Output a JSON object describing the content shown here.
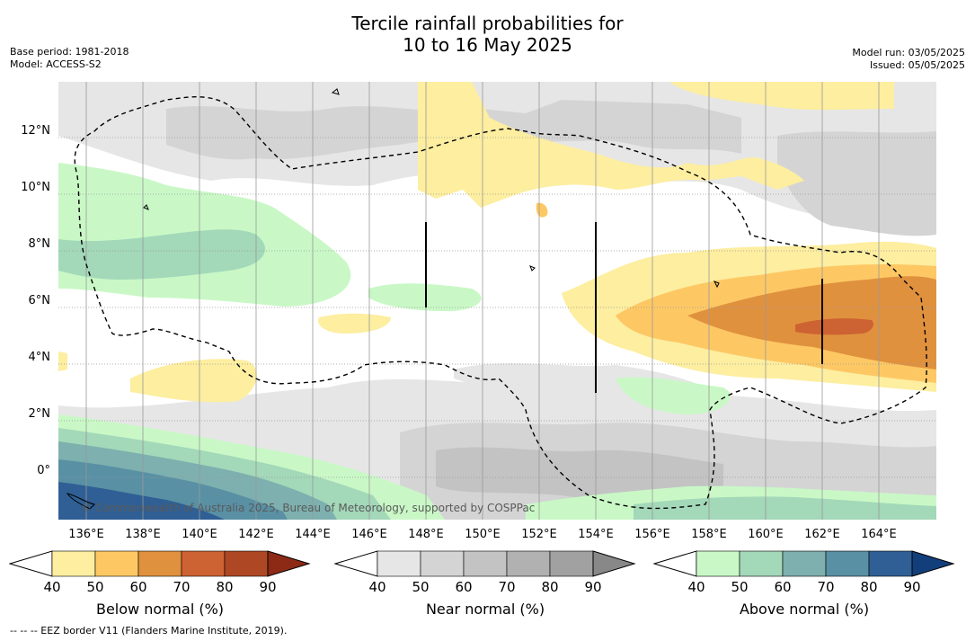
{
  "title_line1": "Tercile rainfall probabilities for",
  "title_line2": "10 to 16 May 2025",
  "meta_left": {
    "base_period": "Base period: 1981-2018",
    "model": "Model: ACCESS-S2"
  },
  "meta_right": {
    "model_run": "Model run: 03/05/2025",
    "issued": "Issued: 05/05/2025"
  },
  "lat_labels": [
    "12°N",
    "10°N",
    "8°N",
    "6°N",
    "4°N",
    "2°N",
    "0°"
  ],
  "lon_labels": [
    "136°E",
    "138°E",
    "140°E",
    "142°E",
    "144°E",
    "146°E",
    "148°E",
    "150°E",
    "152°E",
    "154°E",
    "156°E",
    "158°E",
    "160°E",
    "162°E",
    "164°E"
  ],
  "copyright": "© Commonwealth of Australia 2025, Bureau of Meteorology, supported by COSPPac",
  "colorbars": [
    {
      "title": "Below normal (%)",
      "ticks": [
        "40",
        "50",
        "60",
        "70",
        "80",
        "90"
      ],
      "colors": [
        "#fdeea0",
        "#fdc864",
        "#e0913e",
        "#cd6232",
        "#ae4824",
        "#8c2a16"
      ]
    },
    {
      "title": "Near normal (%)",
      "ticks": [
        "40",
        "50",
        "60",
        "70",
        "80",
        "90"
      ],
      "colors": [
        "#e6e6e6",
        "#d4d4d4",
        "#c3c3c3",
        "#b1b1b1",
        "#a1a1a1",
        "#888888"
      ]
    },
    {
      "title": "Above normal (%)",
      "ticks": [
        "40",
        "50",
        "60",
        "70",
        "80",
        "90"
      ],
      "colors": [
        "#c9f8c6",
        "#a3d8b9",
        "#7db0ae",
        "#5990a4",
        "#2f5f94",
        "#123f7c"
      ]
    }
  ],
  "footer": "-- -- -- EEZ border V11 (Flanders Marine Institute, 2019).",
  "colors": {
    "grid": "#999999",
    "eez": "#000000"
  }
}
